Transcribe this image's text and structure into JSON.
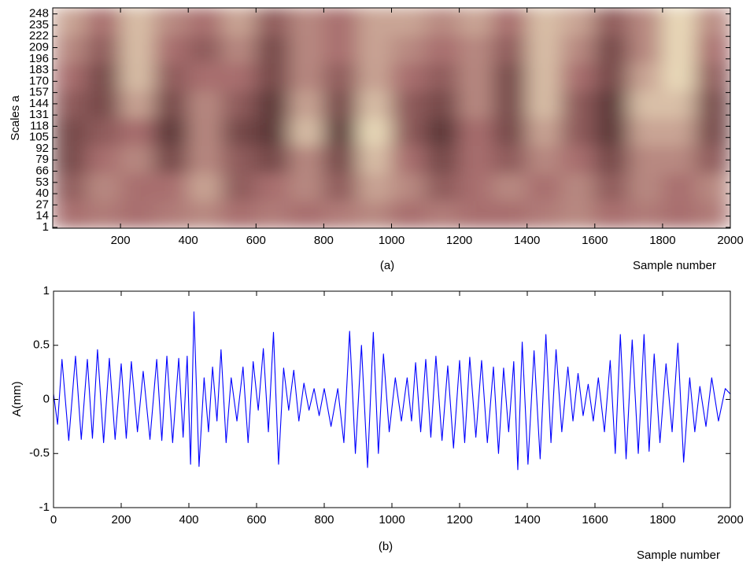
{
  "chart_data": [
    {
      "type": "heatmap",
      "caption": "(a)",
      "xlabel": "Sample number",
      "ylabel": "Scales a",
      "xlim": [
        0,
        2000
      ],
      "ylim": [
        0,
        255
      ],
      "xticks": [
        200,
        400,
        600,
        800,
        1000,
        1200,
        1400,
        1600,
        1800,
        2000
      ],
      "yticks": [
        1,
        14,
        27,
        40,
        53,
        66,
        79,
        92,
        105,
        118,
        131,
        144,
        157,
        170,
        183,
        196,
        209,
        222,
        235,
        248
      ],
      "colors": [
        "#2a1414",
        "#a86e6e",
        "#faf5cd"
      ],
      "z": [
        [
          0.5,
          0.55,
          0.5,
          0.55,
          0.6,
          0.5,
          0.55,
          0.5,
          0.55,
          0.6,
          0.5,
          0.55,
          0.5,
          0.5,
          0.55,
          0.6,
          0.5,
          0.55,
          0.5,
          0.55
        ],
        [
          0.4,
          0.6,
          0.5,
          0.5,
          0.7,
          0.4,
          0.5,
          0.6,
          0.4,
          0.7,
          0.6,
          0.4,
          0.5,
          0.6,
          0.5,
          0.6,
          0.4,
          0.6,
          0.5,
          0.6
        ],
        [
          0.3,
          0.5,
          0.6,
          0.3,
          0.6,
          0.4,
          0.3,
          0.6,
          0.3,
          0.8,
          0.5,
          0.3,
          0.5,
          0.4,
          0.6,
          0.5,
          0.3,
          0.6,
          0.6,
          0.4
        ],
        [
          0.3,
          0.4,
          0.5,
          0.2,
          0.6,
          0.3,
          0.2,
          0.8,
          0.2,
          0.9,
          0.4,
          0.2,
          0.5,
          0.3,
          0.7,
          0.4,
          0.2,
          0.7,
          0.7,
          0.3
        ],
        [
          0.4,
          0.3,
          0.7,
          0.3,
          0.6,
          0.4,
          0.2,
          0.7,
          0.3,
          0.8,
          0.4,
          0.3,
          0.6,
          0.3,
          0.8,
          0.4,
          0.2,
          0.8,
          0.8,
          0.3
        ],
        [
          0.5,
          0.3,
          0.8,
          0.4,
          0.5,
          0.5,
          0.3,
          0.6,
          0.4,
          0.7,
          0.5,
          0.4,
          0.6,
          0.3,
          0.8,
          0.5,
          0.3,
          0.7,
          0.9,
          0.4
        ],
        [
          0.6,
          0.4,
          0.8,
          0.5,
          0.4,
          0.6,
          0.3,
          0.6,
          0.5,
          0.7,
          0.6,
          0.5,
          0.6,
          0.4,
          0.8,
          0.6,
          0.3,
          0.6,
          0.9,
          0.5
        ],
        [
          0.7,
          0.5,
          0.8,
          0.6,
          0.5,
          0.7,
          0.4,
          0.6,
          0.5,
          0.7,
          0.7,
          0.6,
          0.7,
          0.5,
          0.8,
          0.7,
          0.4,
          0.6,
          0.9,
          0.6
        ]
      ]
    },
    {
      "type": "line",
      "caption": "(b)",
      "xlabel": "Sample number",
      "ylabel": "A(mm)",
      "xlim": [
        0,
        2000
      ],
      "ylim": [
        -1,
        1
      ],
      "xticks": [
        0,
        200,
        400,
        600,
        800,
        1000,
        1200,
        1400,
        1600,
        1800,
        2000
      ],
      "yticks": [
        -1,
        -0.5,
        0,
        0.5,
        1
      ],
      "color": "#0000ff",
      "x": [
        0,
        12,
        25,
        45,
        65,
        82,
        100,
        115,
        130,
        148,
        165,
        182,
        200,
        215,
        230,
        248,
        265,
        285,
        305,
        320,
        335,
        352,
        370,
        383,
        395,
        405,
        415,
        430,
        445,
        458,
        470,
        483,
        495,
        510,
        525,
        542,
        560,
        575,
        590,
        605,
        620,
        635,
        650,
        665,
        680,
        695,
        710,
        725,
        740,
        755,
        770,
        785,
        800,
        820,
        840,
        858,
        875,
        892,
        910,
        928,
        945,
        960,
        975,
        992,
        1010,
        1028,
        1045,
        1058,
        1070,
        1085,
        1100,
        1115,
        1130,
        1148,
        1165,
        1182,
        1200,
        1215,
        1230,
        1248,
        1265,
        1282,
        1300,
        1315,
        1330,
        1345,
        1360,
        1372,
        1385,
        1402,
        1420,
        1438,
        1455,
        1470,
        1485,
        1502,
        1520,
        1535,
        1550,
        1565,
        1580,
        1595,
        1610,
        1628,
        1645,
        1660,
        1675,
        1692,
        1710,
        1728,
        1745,
        1760,
        1775,
        1792,
        1810,
        1828,
        1845,
        1862,
        1880,
        1895,
        1910,
        1928,
        1945,
        1965,
        1985,
        2000
      ],
      "values": [
        0.05,
        -0.23,
        0.37,
        -0.38,
        0.4,
        -0.37,
        0.37,
        -0.36,
        0.46,
        -0.4,
        0.38,
        -0.37,
        0.33,
        -0.36,
        0.35,
        -0.3,
        0.26,
        -0.37,
        0.37,
        -0.38,
        0.4,
        -0.4,
        0.38,
        -0.35,
        0.4,
        -0.6,
        0.81,
        -0.62,
        0.2,
        -0.3,
        0.3,
        -0.2,
        0.46,
        -0.4,
        0.2,
        -0.2,
        0.3,
        -0.4,
        0.35,
        -0.1,
        0.47,
        -0.3,
        0.62,
        -0.6,
        0.29,
        -0.1,
        0.27,
        -0.2,
        0.15,
        -0.1,
        0.1,
        -0.15,
        0.1,
        -0.25,
        0.1,
        -0.4,
        0.63,
        -0.5,
        0.5,
        -0.63,
        0.62,
        -0.5,
        0.42,
        -0.3,
        0.2,
        -0.2,
        0.2,
        -0.2,
        0.34,
        -0.3,
        0.37,
        -0.35,
        0.4,
        -0.38,
        0.31,
        -0.45,
        0.36,
        -0.4,
        0.39,
        -0.35,
        0.36,
        -0.4,
        0.3,
        -0.5,
        0.29,
        -0.3,
        0.35,
        -0.65,
        0.53,
        -0.6,
        0.45,
        -0.55,
        0.6,
        -0.4,
        0.46,
        -0.3,
        0.3,
        -0.2,
        0.24,
        -0.15,
        0.14,
        -0.2,
        0.2,
        -0.3,
        0.36,
        -0.5,
        0.6,
        -0.55,
        0.55,
        -0.5,
        0.6,
        -0.48,
        0.42,
        -0.4,
        0.33,
        -0.3,
        0.52,
        -0.58,
        0.2,
        -0.3,
        0.12,
        -0.25,
        0.2,
        -0.2,
        0.1,
        0.05
      ]
    }
  ]
}
